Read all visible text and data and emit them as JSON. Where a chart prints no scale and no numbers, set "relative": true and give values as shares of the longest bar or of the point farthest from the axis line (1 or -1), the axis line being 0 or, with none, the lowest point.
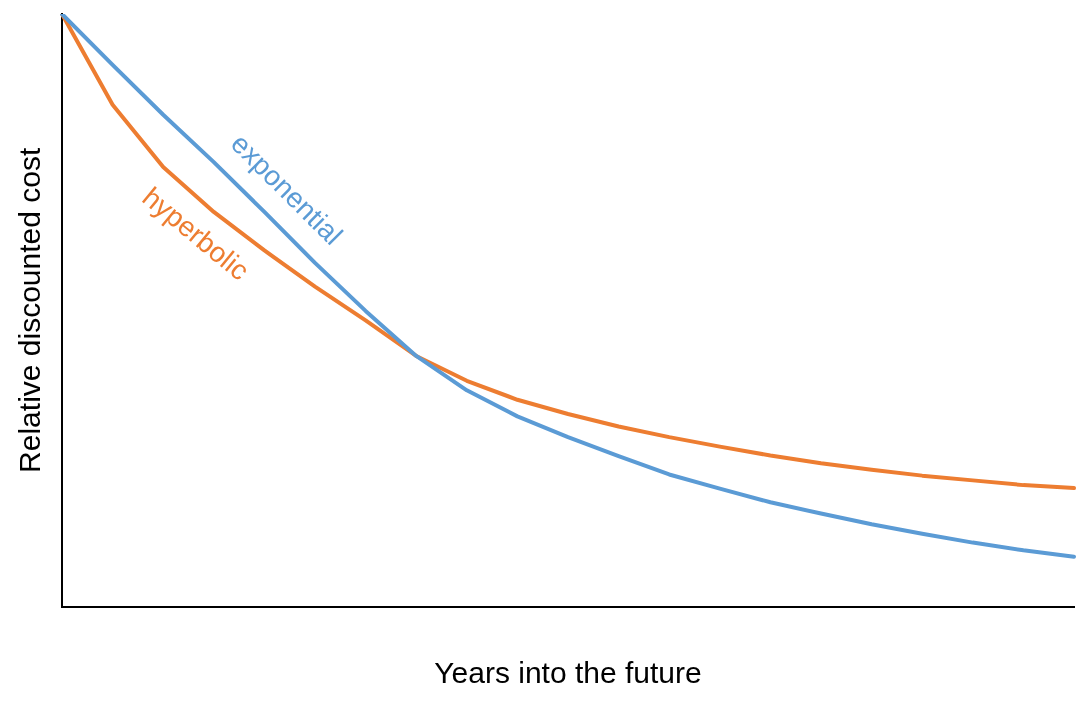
{
  "chart_data": {
    "type": "line",
    "relative": true,
    "xlabel": "Years into the future",
    "ylabel": "Relative discounted cost",
    "categories": [
      null,
      null,
      null,
      null,
      null,
      null,
      null,
      null,
      null,
      null,
      null,
      null,
      null,
      null,
      null,
      null,
      null,
      null,
      null,
      null,
      null
    ],
    "grid": false,
    "legend": false,
    "marker": "none",
    "line_style": "solid",
    "series": [
      {
        "name": "exponential",
        "color": "#5b9bd5",
        "values": [
          1,
          0.914,
          0.83,
          0.75,
          0.666,
          0.58,
          0.499,
          0.423,
          0.365,
          0.321,
          0.286,
          0.254,
          0.223,
          0.199,
          0.176,
          0.157,
          0.139,
          0.123,
          0.108,
          0.095,
          0.084
        ]
      },
      {
        "name": "hyperbolic",
        "color": "#ed7d31",
        "values": [
          1,
          0.847,
          0.742,
          0.666,
          0.601,
          0.54,
          0.483,
          0.423,
          0.381,
          0.349,
          0.325,
          0.304,
          0.286,
          0.27,
          0.255,
          0.242,
          0.231,
          0.221,
          0.213,
          0.205,
          0.2
        ]
      }
    ]
  }
}
